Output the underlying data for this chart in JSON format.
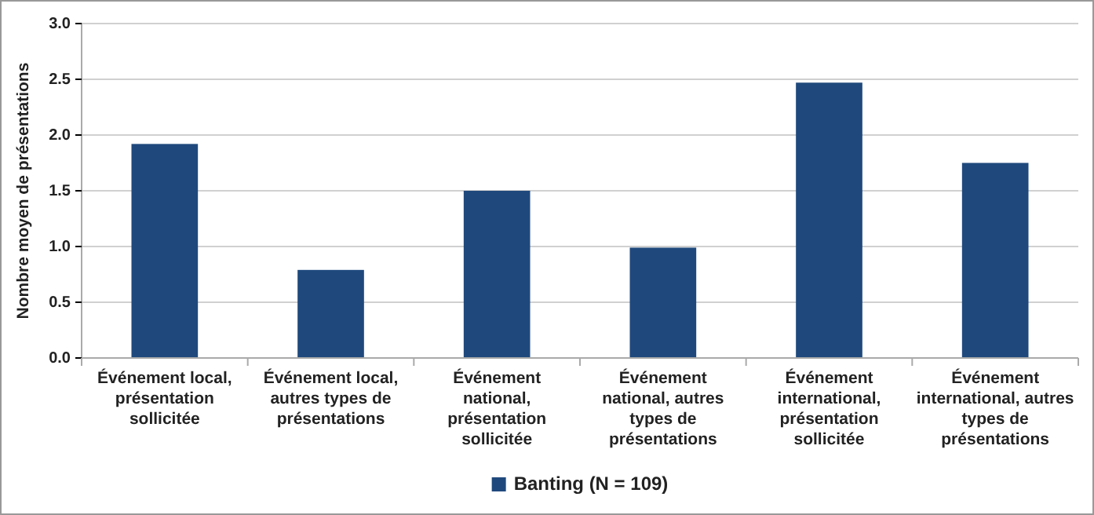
{
  "chart_data": {
    "type": "bar",
    "ylabel": "Nombre moyen de présentations",
    "categories": [
      "Événement local, présentation sollicitée",
      "Événement local, autres types de présentations",
      "Événement national, présentation sollicitée",
      "Événement national, autres types de présentations",
      "Événement international, présentation sollicitée",
      "Événement international, autres types de présentations"
    ],
    "series": [
      {
        "name": "Banting (N = 109)",
        "color": "#1f497d",
        "values": [
          1.92,
          0.79,
          1.5,
          0.99,
          2.47,
          1.75
        ]
      }
    ],
    "ylim": [
      0,
      3
    ],
    "yticks": [
      {
        "value": 0,
        "label": "0.0"
      },
      {
        "value": 0.5,
        "label": "0.5"
      },
      {
        "value": 1,
        "label": "1.0"
      },
      {
        "value": 1.5,
        "label": "1.5"
      },
      {
        "value": 2,
        "label": "2.0"
      },
      {
        "value": 2.5,
        "label": "2.5"
      },
      {
        "value": 3,
        "label": "3.0"
      }
    ],
    "grid": "y",
    "legend": "bottom"
  }
}
